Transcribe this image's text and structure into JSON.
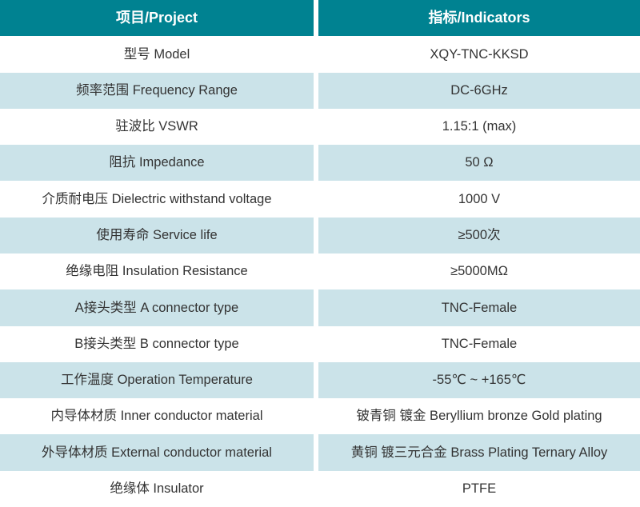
{
  "theme": {
    "header_bg": "#008291",
    "header_text": "#ffffff",
    "alt_row_bg": "#cbe3e9",
    "body_text": "#333333"
  },
  "table": {
    "header": {
      "project_label": "项目/Project",
      "indicators_label": "指标/Indicators"
    },
    "rows": [
      {
        "label": "型号 Model",
        "value": "XQY-TNC-KKSD"
      },
      {
        "label": "频率范围 Frequency Range",
        "value": "DC-6GHz"
      },
      {
        "label": "驻波比 VSWR",
        "value": "1.15:1 (max)"
      },
      {
        "label": "阻抗 Impedance",
        "value": "50 Ω"
      },
      {
        "label": "介质耐电压 Dielectric withstand voltage",
        "value": "1000 V"
      },
      {
        "label": "使用寿命 Service life",
        "value": "≥500次"
      },
      {
        "label": "绝缘电阻 Insulation Resistance",
        "value": "≥5000MΩ"
      },
      {
        "label": "A接头类型 A connector type",
        "value": "TNC-Female"
      },
      {
        "label": "B接头类型 B connector type",
        "value": "TNC-Female"
      },
      {
        "label": "工作温度 Operation Temperature",
        "value": "-55℃ ~ +165℃"
      },
      {
        "label": "内导体材质 Inner conductor material",
        "value": "铍青铜 镀金 Beryllium bronze Gold plating"
      },
      {
        "label": "外导体材质 External conductor material",
        "value": "黄铜 镀三元合金 Brass Plating Ternary Alloy"
      },
      {
        "label": "绝缘体 Insulator",
        "value": "PTFE"
      }
    ]
  }
}
